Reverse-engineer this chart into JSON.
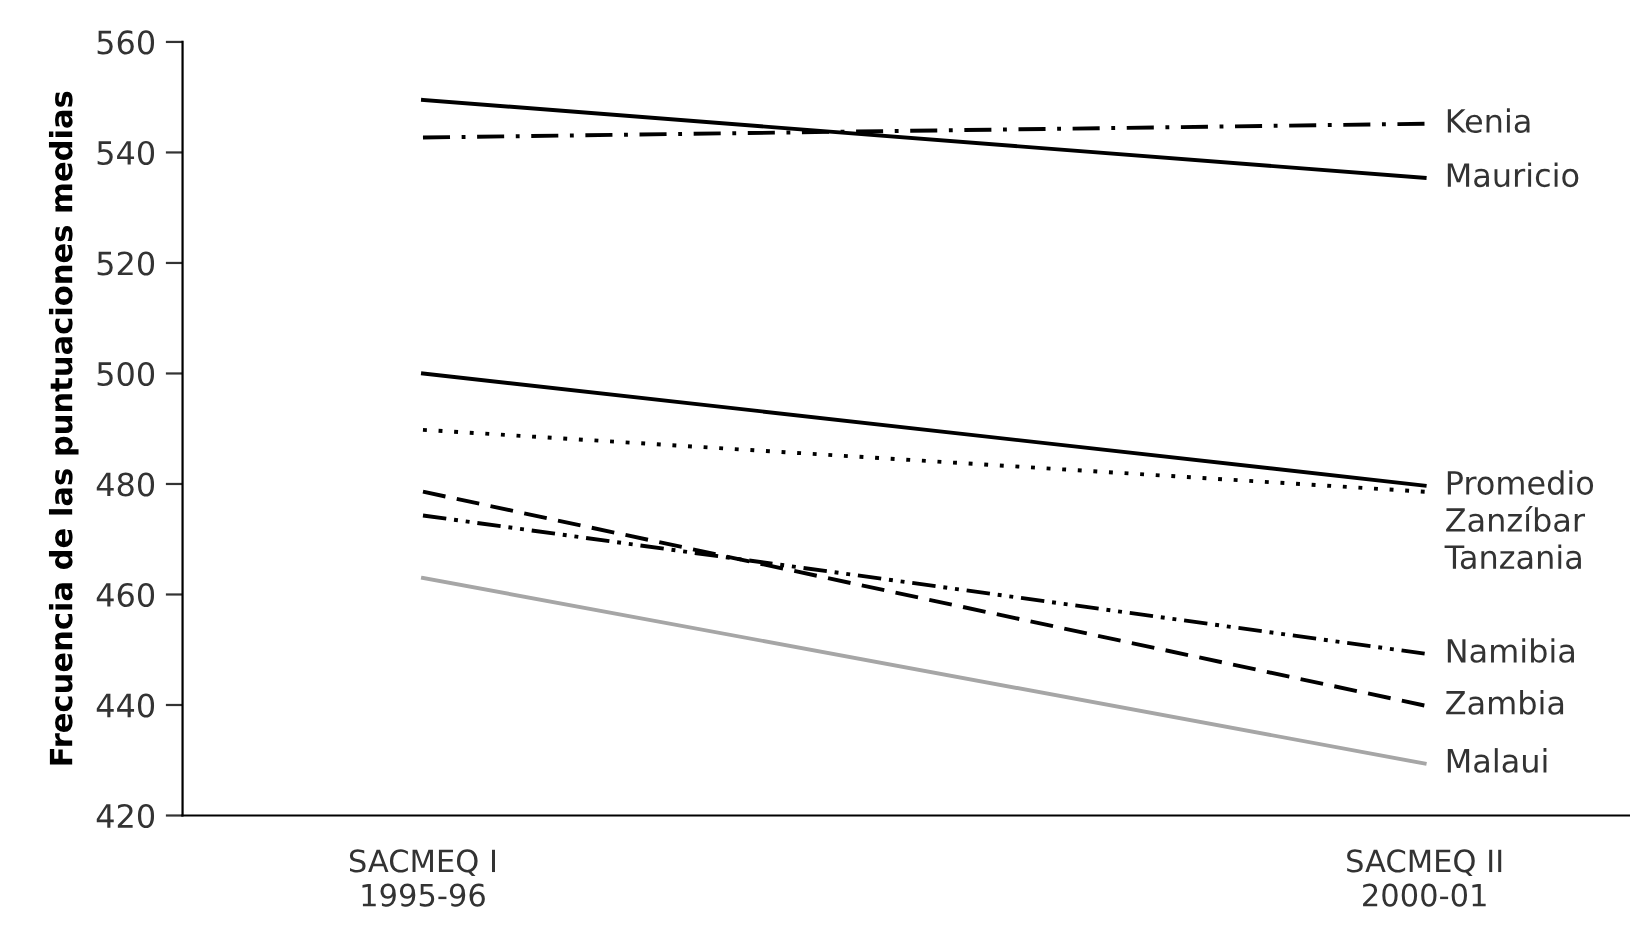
{
  "chart_data": {
    "type": "line",
    "ylabel": "Frecuencia de las puntuaciones medias",
    "categories": [
      "SACMEQ I\n1995-96",
      "SACMEQ II\n2000-01"
    ],
    "ylim": [
      420,
      560
    ],
    "yticks": [
      420,
      440,
      460,
      480,
      500,
      520,
      540,
      560
    ],
    "grid": false,
    "legend": false,
    "marker": "none",
    "series": [
      {
        "name": "Kenia",
        "color": "#000000",
        "line_style": "dashdot",
        "values": [
          542.7,
          545.2
        ]
      },
      {
        "name": "Mauricio",
        "color": "#000000",
        "line_style": "solid",
        "values": [
          549.5,
          535.4
        ]
      },
      {
        "name": "Promedio",
        "color": "#000000",
        "line_style": "solid",
        "values": [
          500,
          479.7
        ]
      },
      {
        "name": "Zanzíbar",
        "color": "#000000",
        "line_style": "dotted",
        "values": [
          489.8,
          478.6
        ]
      },
      {
        "name": "Tanzania",
        "values": [
          null,
          null
        ]
      },
      {
        "name": "Namibia",
        "color": "#000000",
        "line_style": "dashdotdot",
        "values": [
          474.3,
          449.3
        ]
      },
      {
        "name": "Zambia",
        "color": "#000000",
        "line_style": "dashed",
        "values": [
          478.6,
          439.9
        ]
      },
      {
        "name": "Malaui",
        "color": "#a6a6a6",
        "line_style": "solid",
        "values": [
          463,
          429.4
        ]
      }
    ]
  }
}
